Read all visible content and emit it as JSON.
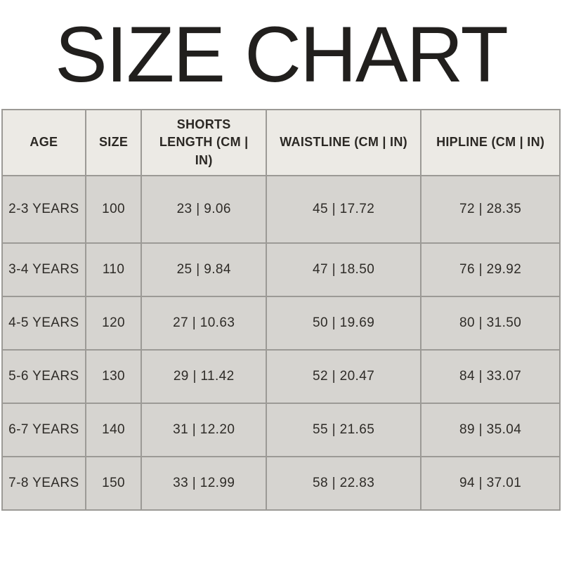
{
  "page": {
    "title": "SIZE CHART"
  },
  "colors": {
    "background": "#ffffff",
    "title_text": "#211f1d",
    "header_bg": "#eceae5",
    "row_bg": "#d6d4d0",
    "border": "#9c9a96",
    "cell_text": "#2e2b27"
  },
  "chart_data": {
    "type": "table",
    "title": "SIZE CHART",
    "columns": [
      "AGE",
      "SIZE",
      "SHORTS LENGTH (CM | IN)",
      "WAISTLINE (CM | IN)",
      "HIPLINE (CM | IN)"
    ],
    "fields": [
      "age",
      "size",
      "shorts_length",
      "waistline",
      "hipline"
    ],
    "rows": [
      {
        "age": "2-3 YEARS",
        "size": "100",
        "shorts_length": "23 | 9.06",
        "waistline": "45 | 17.72",
        "hipline": "72 | 28.35"
      },
      {
        "age": "3-4 YEARS",
        "size": "110",
        "shorts_length": "25 | 9.84",
        "waistline": "47 | 18.50",
        "hipline": "76 | 29.92"
      },
      {
        "age": "4-5 YEARS",
        "size": "120",
        "shorts_length": "27 | 10.63",
        "waistline": "50 | 19.69",
        "hipline": "80 | 31.50"
      },
      {
        "age": "5-6 YEARS",
        "size": "130",
        "shorts_length": "29 | 11.42",
        "waistline": "52 | 20.47",
        "hipline": "84 | 33.07"
      },
      {
        "age": "6-7 YEARS",
        "size": "140",
        "shorts_length": "31 | 12.20",
        "waistline": "55 | 21.65",
        "hipline": "89 | 35.04"
      },
      {
        "age": "7-8 YEARS",
        "size": "150",
        "shorts_length": "33 | 12.99",
        "waistline": "58 | 22.83",
        "hipline": "94 | 37.01"
      }
    ]
  }
}
